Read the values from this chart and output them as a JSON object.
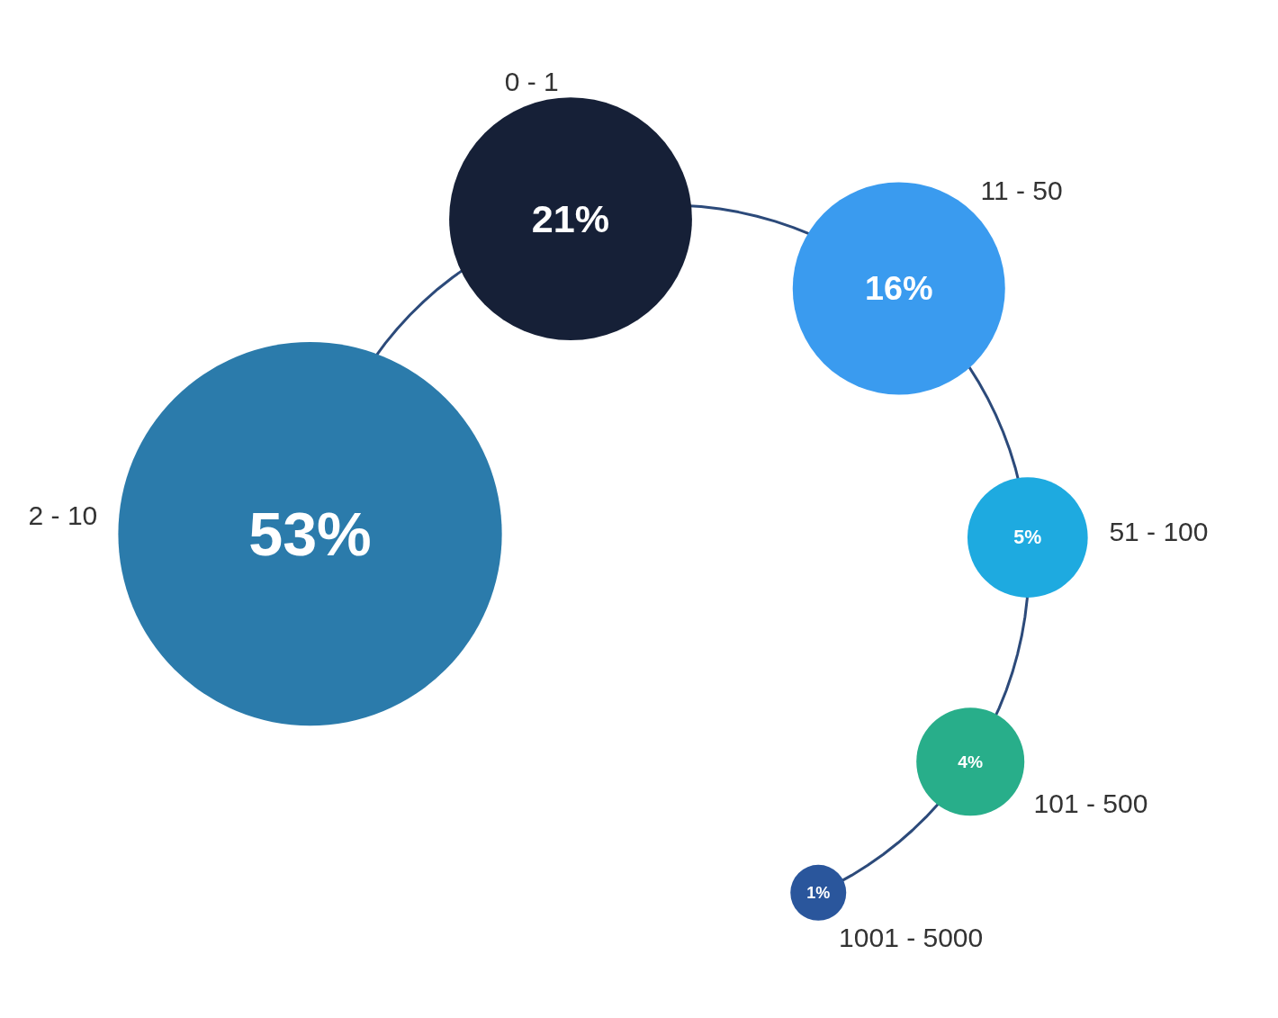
{
  "chart_data": {
    "type": "other",
    "categories": [
      "2 - 10",
      "0 - 1",
      "11 - 50",
      "51 - 100",
      "101 - 500",
      "1001 - 5000"
    ],
    "values": [
      53,
      21,
      16,
      5,
      4,
      1
    ],
    "value_labels": [
      "53%",
      "21%",
      "16%",
      "5%",
      "4%",
      "1%"
    ],
    "colors": [
      "#2b7bab",
      "#162037",
      "#3a9bef",
      "#1eaae0",
      "#28ae8a",
      "#2a569c"
    ]
  }
}
